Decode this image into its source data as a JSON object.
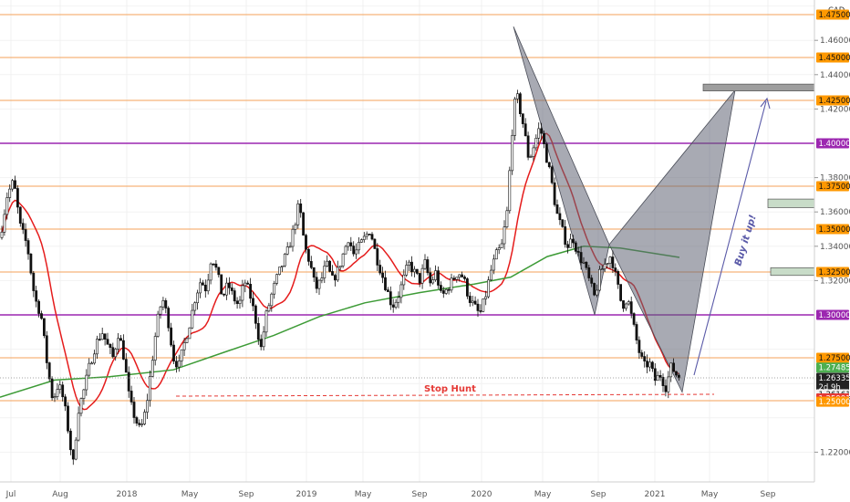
{
  "header": {
    "currency": "CAD"
  },
  "chart_data": {
    "type": "candlestick",
    "symbol_currency": "CAD",
    "ylim": [
      1.2,
      1.48
    ],
    "x_tick_labels": [
      "Jul",
      "Aug",
      "2018",
      "May",
      "Sep",
      "2019",
      "May",
      "Sep",
      "2020",
      "May",
      "Sep",
      "2021",
      "May",
      "Sep"
    ],
    "y_tick_labels": [
      "1.46000",
      "1.44000",
      "1.42000",
      "1.38000",
      "1.36000",
      "1.34000",
      "1.32000",
      "1.22000"
    ],
    "horizontal_levels": [
      {
        "value": 1.475,
        "label": "1.47500",
        "kind": "orange"
      },
      {
        "value": 1.45,
        "label": "1.45000",
        "kind": "orange"
      },
      {
        "value": 1.425,
        "label": "1.42500",
        "kind": "orange"
      },
      {
        "value": 1.4,
        "label": "1.40000",
        "kind": "purple"
      },
      {
        "value": 1.375,
        "label": "1.37500",
        "kind": "orange"
      },
      {
        "value": 1.35,
        "label": "1.35000",
        "kind": "orange"
      },
      {
        "value": 1.325,
        "label": "1.32500",
        "kind": "orange"
      },
      {
        "value": 1.3,
        "label": "1.30000",
        "kind": "purple"
      },
      {
        "value": 1.275,
        "label": "1.27500",
        "kind": "orange"
      },
      {
        "value": 1.25,
        "label": "1.25000",
        "kind": "orange"
      }
    ],
    "price_tags": [
      {
        "label": "1.27485",
        "value": 1.2693,
        "color": "#4caf50"
      },
      {
        "label": "1.26335",
        "value": 1.2633,
        "color": "#222222"
      },
      {
        "label": "2d 9h",
        "value": 1.2581,
        "color": "#222222"
      },
      {
        "label": "1.26161",
        "value": 1.2537,
        "color": "#f2f2f2"
      },
      {
        "label": "1.25991",
        "value": 1.2513,
        "color": "#e53935"
      },
      {
        "label": "1.25000",
        "value": 1.2494,
        "color": "#ff9800"
      }
    ],
    "annotations": {
      "stop_hunt": "Stop Hunt",
      "buy_it_up": "Buy it up!"
    },
    "price_path": [
      [
        0,
        1.345
      ],
      [
        8,
        1.37
      ],
      [
        15,
        1.378
      ],
      [
        22,
        1.352
      ],
      [
        30,
        1.34
      ],
      [
        38,
        1.31
      ],
      [
        45,
        1.3
      ],
      [
        52,
        1.27
      ],
      [
        58,
        1.25
      ],
      [
        64,
        1.26
      ],
      [
        70,
        1.25
      ],
      [
        75,
        1.232
      ],
      [
        80,
        1.212
      ],
      [
        86,
        1.245
      ],
      [
        92,
        1.256
      ],
      [
        98,
        1.27
      ],
      [
        105,
        1.283
      ],
      [
        112,
        1.29
      ],
      [
        118,
        1.282
      ],
      [
        124,
        1.275
      ],
      [
        130,
        1.29
      ],
      [
        136,
        1.275
      ],
      [
        142,
        1.25
      ],
      [
        148,
        1.24
      ],
      [
        154,
        1.232
      ],
      [
        160,
        1.245
      ],
      [
        166,
        1.27
      ],
      [
        172,
        1.295
      ],
      [
        178,
        1.31
      ],
      [
        184,
        1.298
      ],
      [
        190,
        1.275
      ],
      [
        196,
        1.27
      ],
      [
        202,
        1.283
      ],
      [
        208,
        1.295
      ],
      [
        214,
        1.31
      ],
      [
        220,
        1.32
      ],
      [
        226,
        1.315
      ],
      [
        232,
        1.335
      ],
      [
        238,
        1.325
      ],
      [
        244,
        1.31
      ],
      [
        250,
        1.318
      ],
      [
        256,
        1.31
      ],
      [
        262,
        1.305
      ],
      [
        268,
        1.32
      ],
      [
        274,
        1.312
      ],
      [
        280,
        1.298
      ],
      [
        286,
        1.28
      ],
      [
        292,
        1.3
      ],
      [
        298,
        1.312
      ],
      [
        304,
        1.322
      ],
      [
        310,
        1.33
      ],
      [
        316,
        1.338
      ],
      [
        322,
        1.35
      ],
      [
        328,
        1.365
      ],
      [
        334,
        1.34
      ],
      [
        340,
        1.33
      ],
      [
        346,
        1.315
      ],
      [
        352,
        1.32
      ],
      [
        358,
        1.33
      ],
      [
        364,
        1.32
      ],
      [
        370,
        1.325
      ],
      [
        376,
        1.335
      ],
      [
        382,
        1.345
      ],
      [
        388,
        1.335
      ],
      [
        394,
        1.34
      ],
      [
        400,
        1.345
      ],
      [
        406,
        1.35
      ],
      [
        412,
        1.335
      ],
      [
        418,
        1.325
      ],
      [
        424,
        1.315
      ],
      [
        430,
        1.305
      ],
      [
        436,
        1.31
      ],
      [
        442,
        1.32
      ],
      [
        448,
        1.33
      ],
      [
        454,
        1.325
      ],
      [
        460,
        1.32
      ],
      [
        466,
        1.33
      ],
      [
        472,
        1.318
      ],
      [
        478,
        1.325
      ],
      [
        484,
        1.31
      ],
      [
        490,
        1.315
      ],
      [
        496,
        1.32
      ],
      [
        502,
        1.325
      ],
      [
        508,
        1.322
      ],
      [
        514,
        1.31
      ],
      [
        520,
        1.305
      ],
      [
        526,
        1.3
      ],
      [
        532,
        1.31
      ],
      [
        538,
        1.325
      ],
      [
        544,
        1.335
      ],
      [
        550,
        1.34
      ],
      [
        556,
        1.36
      ],
      [
        562,
        1.41
      ],
      [
        566,
        1.43
      ],
      [
        570,
        1.42
      ],
      [
        574,
        1.41
      ],
      [
        580,
        1.39
      ],
      [
        586,
        1.4
      ],
      [
        592,
        1.41
      ],
      [
        598,
        1.395
      ],
      [
        604,
        1.38
      ],
      [
        610,
        1.36
      ],
      [
        616,
        1.35
      ],
      [
        622,
        1.34
      ],
      [
        628,
        1.345
      ],
      [
        634,
        1.335
      ],
      [
        640,
        1.33
      ],
      [
        646,
        1.32
      ],
      [
        652,
        1.31
      ],
      [
        658,
        1.325
      ],
      [
        664,
        1.33
      ],
      [
        670,
        1.335
      ],
      [
        676,
        1.32
      ],
      [
        682,
        1.305
      ],
      [
        688,
        1.31
      ],
      [
        694,
        1.295
      ],
      [
        700,
        1.28
      ],
      [
        706,
        1.27
      ],
      [
        712,
        1.272
      ],
      [
        718,
        1.262
      ],
      [
        724,
        1.265
      ],
      [
        730,
        1.258
      ],
      [
        736,
        1.27
      ],
      [
        742,
        1.265
      ],
      [
        746,
        1.2634
      ]
    ]
  }
}
